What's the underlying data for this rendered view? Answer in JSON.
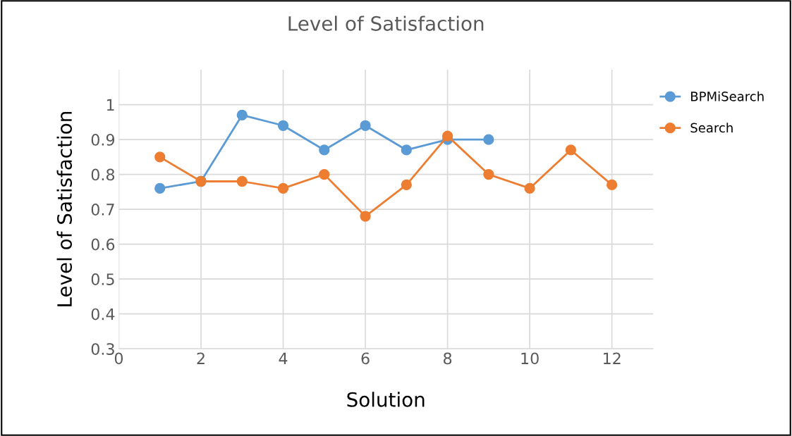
{
  "chart_data": {
    "type": "line",
    "title": "Level of Satisfaction",
    "xlabel": "Solution",
    "ylabel": "Level of Satisfaction",
    "xlim": [
      0,
      13
    ],
    "xticks": [
      0,
      2,
      4,
      6,
      8,
      10,
      12
    ],
    "ylim": [
      0.3,
      1.1
    ],
    "yticks": [
      0.3,
      0.4,
      0.5,
      0.6,
      0.7,
      0.8,
      0.9,
      1
    ],
    "grid": true,
    "legend": "right",
    "marker": "circle",
    "line_style": "solid",
    "series": [
      {
        "name": "BPMiSearch",
        "color": "#5b9bd5",
        "x": [
          1,
          2,
          3,
          4,
          5,
          6,
          7,
          8,
          9
        ],
        "values": [
          0.76,
          0.78,
          0.97,
          0.94,
          0.87,
          0.94,
          0.87,
          0.9,
          0.9
        ]
      },
      {
        "name": "Search",
        "color": "#ed7d31",
        "x": [
          1,
          2,
          3,
          4,
          5,
          6,
          7,
          8,
          9,
          10,
          11,
          12
        ],
        "values": [
          0.85,
          0.78,
          0.78,
          0.76,
          0.8,
          0.68,
          0.77,
          0.91,
          0.8,
          0.76,
          0.87,
          0.77
        ]
      }
    ]
  }
}
